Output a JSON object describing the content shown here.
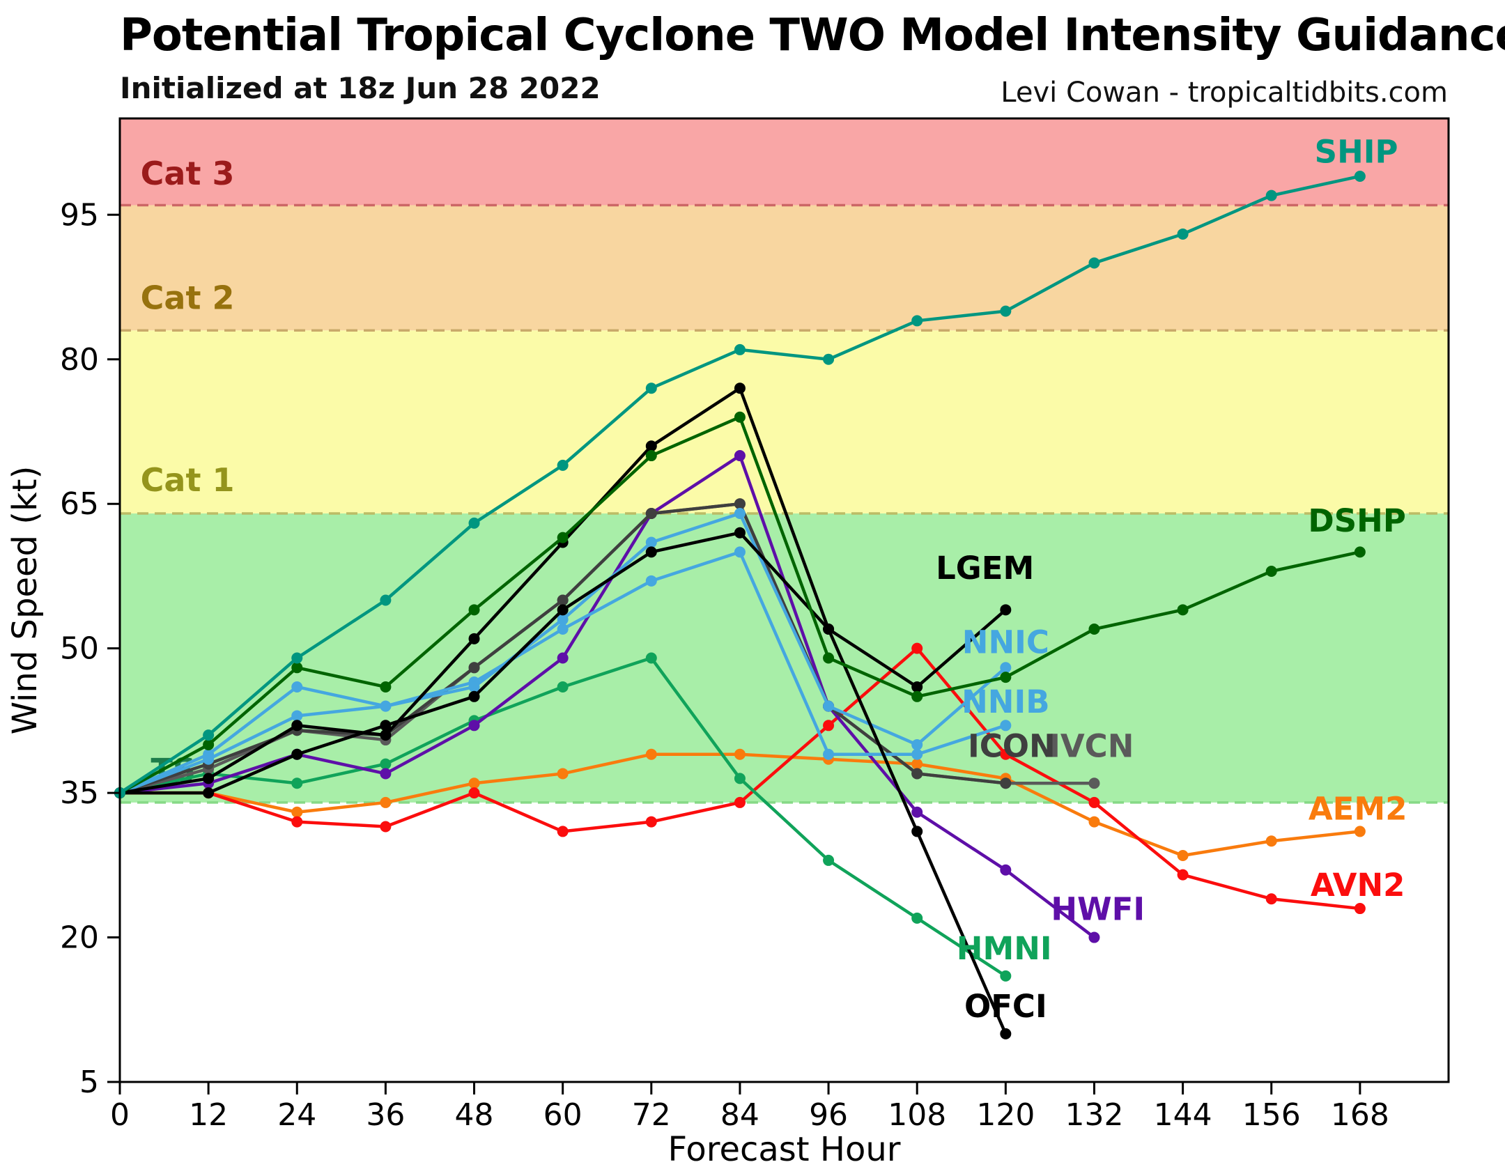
{
  "header": {
    "title": "Potential Tropical Cyclone TWO Model Intensity Guidance",
    "subtitle": "Initialized at 18z Jun 28 2022",
    "credit": "Levi Cowan - tropicaltidbits.com"
  },
  "chart_data": {
    "type": "line",
    "title": "Potential Tropical Cyclone TWO Model Intensity Guidance",
    "xlabel": "Forecast Hour",
    "ylabel": "Wind Speed (kt)",
    "xlim": [
      0,
      180
    ],
    "ylim": [
      5,
      105
    ],
    "x_ticks": [
      0,
      12,
      24,
      36,
      48,
      60,
      72,
      84,
      96,
      108,
      120,
      132,
      144,
      156,
      168
    ],
    "y_ticks": [
      5,
      20,
      35,
      50,
      65,
      80,
      95
    ],
    "grid": false,
    "legend_position": "inline-labels",
    "x": [
      0,
      12,
      24,
      36,
      48,
      60,
      72,
      84,
      96,
      108,
      120,
      132,
      144,
      156,
      168
    ],
    "bands": [
      {
        "name": "below-TS",
        "from": 5,
        "to": 34,
        "fill": "#ffffff",
        "line_color": null,
        "label": null,
        "label_color": null,
        "label_x": null,
        "label_y": null
      },
      {
        "name": "TS",
        "from": 34,
        "to": 64,
        "fill": "#a8eea8",
        "line_color": "#86d986",
        "label": "TS",
        "label_color": "#1d7d4a",
        "label_x": 4.2,
        "label_y": 37.3
      },
      {
        "name": "Cat 1",
        "from": 64,
        "to": 83,
        "fill": "#fbfba8",
        "line_color": "#bcbc66",
        "label": "Cat 1",
        "label_color": "#94941c",
        "label_x": 2.8,
        "label_y": 67.4
      },
      {
        "name": "Cat 2",
        "from": 83,
        "to": 96,
        "fill": "#f8d6a0",
        "line_color": "#c9a96a",
        "label": "Cat 2",
        "label_color": "#97720e",
        "label_x": 2.8,
        "label_y": 86.3
      },
      {
        "name": "Cat 3",
        "from": 96,
        "to": 105,
        "fill": "#f9a6a6",
        "line_color": "#cc6666",
        "label": "Cat 3",
        "label_color": "#9b1b1b",
        "label_x": 2.8,
        "label_y": 99.2
      }
    ],
    "series": [
      {
        "name": "AEM2",
        "color": "#f97b0d",
        "values": [
          35,
          35,
          33,
          34,
          36,
          37,
          39,
          39,
          38.5,
          38,
          36.5,
          32,
          28.5,
          30,
          31
        ],
        "label": {
          "text": "AEM2",
          "x": 167.7,
          "y": 33.3
        }
      },
      {
        "name": "AVN2",
        "color": "#fb0d0d",
        "values": [
          35,
          35,
          32,
          31.5,
          35,
          31,
          32,
          34,
          42,
          50,
          39,
          34,
          26.5,
          24,
          23
        ],
        "label": {
          "text": "AVN2",
          "x": 167.7,
          "y": 25.4
        }
      },
      {
        "name": "HMNI",
        "color": "#10a35a",
        "values": [
          35,
          37,
          36,
          38,
          42.5,
          46,
          49,
          36.5,
          28,
          22,
          16,
          null,
          null,
          null,
          null
        ],
        "label": {
          "text": "HMNI",
          "x": 119.8,
          "y": 18.8
        }
      },
      {
        "name": "HWFI",
        "color": "#5e0fa8",
        "values": [
          35,
          36,
          39,
          37,
          42,
          49,
          64,
          70,
          44,
          33,
          27,
          20,
          null,
          null,
          null
        ],
        "label": {
          "text": "HWFI",
          "x": 132.5,
          "y": 22.9
        }
      },
      {
        "name": "IVCN",
        "color": "#5a5a5a",
        "values": [
          35,
          37.5,
          41.5,
          40.5,
          48,
          55,
          64,
          65,
          44,
          37,
          36,
          36,
          null,
          null,
          null
        ],
        "label": {
          "text": "IVCN",
          "x": 131.6,
          "y": 39.8
        }
      },
      {
        "name": "ICON",
        "color": "#3f3f3f",
        "values": [
          35,
          38,
          41.5,
          41,
          48,
          55,
          64,
          65,
          44,
          37,
          36,
          null,
          null,
          null,
          null
        ],
        "label": {
          "text": "ICON",
          "x": 120.8,
          "y": 39.8
        }
      },
      {
        "name": "NNIB",
        "color": "#45a7e0",
        "values": [
          35,
          38.5,
          43,
          44,
          46.5,
          52,
          57,
          60,
          39,
          39,
          42,
          null,
          null,
          null,
          null
        ],
        "label": {
          "text": "NNIB",
          "x": 120,
          "y": 44.4
        }
      },
      {
        "name": "NNIC",
        "color": "#45a7e0",
        "values": [
          35,
          39,
          46,
          44,
          46,
          53,
          61,
          64,
          44,
          40,
          48,
          null,
          null,
          null,
          null
        ],
        "label": {
          "text": "NNIC",
          "x": 120,
          "y": 50.6
        }
      },
      {
        "name": "OFCI",
        "color": "#000000",
        "values": [
          35,
          35,
          39,
          42,
          45,
          54,
          60,
          62,
          52,
          31,
          10,
          null,
          null,
          null,
          null
        ],
        "label": {
          "text": "OFCI",
          "x": 120,
          "y": 12.8
        }
      },
      {
        "name": "LGEM",
        "color": "#000000",
        "values": [
          35,
          36.5,
          42,
          41,
          51,
          61,
          71,
          77,
          52,
          46,
          54,
          null,
          null,
          null,
          null
        ],
        "label": {
          "text": "LGEM",
          "x": 117.2,
          "y": 58.3
        }
      },
      {
        "name": "DSHP",
        "color": "#006400",
        "values": [
          35,
          40,
          48,
          46,
          54,
          61.5,
          70,
          74,
          49,
          45,
          47,
          52,
          54,
          58,
          60
        ],
        "label": {
          "text": "DSHP",
          "x": 167.6,
          "y": 63.2
        }
      },
      {
        "name": "SHIP",
        "color": "#009680",
        "values": [
          35,
          41,
          49,
          55,
          63,
          69,
          77,
          81,
          80,
          84,
          85,
          90,
          93,
          97,
          99
        ],
        "label": {
          "text": "SHIP",
          "x": 167.5,
          "y": 101.5
        }
      }
    ]
  }
}
